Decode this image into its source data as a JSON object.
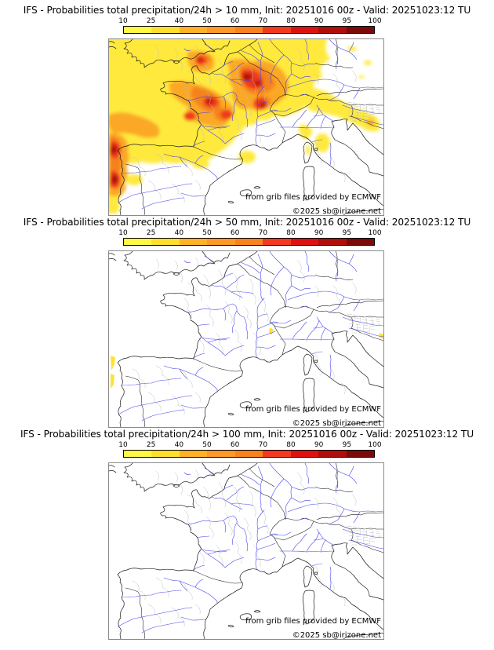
{
  "page": {
    "background": "#ffffff"
  },
  "panels": [
    {
      "title": "IFS - Probabilities total precipitation/24h > 10 mm, Init: 20251016 00z - Valid: 20251023:12 TU",
      "threshold_mm": "10"
    },
    {
      "title": "IFS - Probabilities total precipitation/24h > 50 mm, Init: 20251016 00z - Valid: 20251023:12 TU",
      "threshold_mm": "50"
    },
    {
      "title": "IFS - Probabilities total precipitation/24h > 100 mm, Init: 20251016 00z - Valid: 20251023:12 TU",
      "threshold_mm": "100"
    }
  ],
  "colorbar": {
    "ticks": [
      "10",
      "25",
      "40",
      "50",
      "60",
      "70",
      "80",
      "90",
      "95",
      "100"
    ],
    "segment_colors": [
      "#fff845",
      "#ffdf2e",
      "#ffb228",
      "#fc9928",
      "#f8821e",
      "#f23a1e",
      "#dd1210",
      "#b00d0b",
      "#7c0a08"
    ]
  },
  "map": {
    "attribution_line1": "from grib files provided by ECMWF",
    "attribution_line2": "©2025 sb@irizone.net",
    "colors": {
      "coastline": "#1a1a1a",
      "country_border": "#1a1a1a",
      "river": "#4646ec",
      "admin_boundary": "#c0c0c0",
      "frame": "#8a8a8a",
      "background": "#ffffff"
    }
  }
}
